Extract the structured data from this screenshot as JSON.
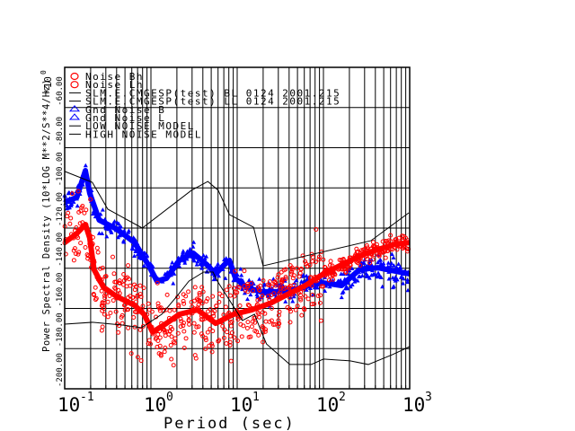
{
  "chart_data": {
    "type": "line",
    "xscale": "log",
    "xlabel": "Period (sec)",
    "ylabel": "Power Spectral Density (10*LOG M**2/S**4/Hz)",
    "y_multiplier": "*10",
    "y_multiplier_exp": "0",
    "xlim": [
      0.1,
      1000
    ],
    "ylim": [
      -200,
      -40
    ],
    "x_ticks": [
      {
        "base": "10",
        "exp": "-1"
      },
      {
        "base": "10",
        "exp": "0"
      },
      {
        "base": "10",
        "exp": "1"
      },
      {
        "base": "10",
        "exp": "2"
      },
      {
        "base": "10",
        "exp": "3"
      }
    ],
    "y_ticks": [
      -200,
      -180,
      -160,
      -140,
      -120,
      -100,
      -80,
      -60
    ],
    "y_tick_labels": [
      "-200.00",
      "-180.00",
      "-160.00",
      "-140.00",
      "-120.00",
      "-100.00",
      "-80.00",
      "-60.00"
    ],
    "grid": true,
    "legend_position": "top-left",
    "legend": [
      {
        "label": "Noise Bh",
        "marker": "circle",
        "color": "#ff0000"
      },
      {
        "label": "Noise Lh",
        "marker": "circle",
        "color": "#ff0000"
      },
      {
        "label": "SLM.E.CMGESP(test) BL 0124 2001.215",
        "marker": "line",
        "color": "#000000"
      },
      {
        "label": "SLM.E.CMGESP(test) LL 0124 2001.215",
        "marker": "line",
        "color": "#000000"
      },
      {
        "label": "Gnd Noise B",
        "marker": "triangle",
        "color": "#0000ff"
      },
      {
        "label": "Gnd Noise L",
        "marker": "triangle",
        "color": "#0000ff"
      },
      {
        "label": "LOW NOISE MODEL",
        "marker": "line",
        "color": "#000000"
      },
      {
        "label": "HIGH NOISE MODEL",
        "marker": "line",
        "color": "#000000"
      }
    ],
    "series": [
      {
        "name": "Gnd Noise (blue)",
        "color": "#0000ff",
        "marker": "triangle",
        "log10_period": [
          -1,
          -0.86,
          -0.76,
          -0.71,
          -0.6,
          -0.4,
          -0.19,
          -0.03,
          0.07,
          0.18,
          0.33,
          0.49,
          0.65,
          0.75,
          0.85,
          0.91,
          0.98,
          1.11,
          1.27,
          1.48,
          1.69,
          1.84,
          2.0,
          2.21,
          2.42,
          2.63,
          2.73,
          3.0
        ],
        "db": [
          -107,
          -104.8,
          -91.4,
          -102.6,
          -116,
          -120.4,
          -127.2,
          -138.3,
          -146.4,
          -145,
          -136.1,
          -132.5,
          -138.3,
          -142.8,
          -138.3,
          -136.1,
          -145,
          -149.5,
          -151.7,
          -151.7,
          -150.4,
          -148.6,
          -147.3,
          -148.6,
          -140.6,
          -139.7,
          -140.6,
          -142.8
        ]
      },
      {
        "name": "Noise (red)",
        "color": "#ff0000",
        "marker": "circle",
        "log10_period": [
          -1,
          -0.86,
          -0.76,
          -0.71,
          -0.66,
          -0.55,
          -0.4,
          -0.19,
          -0.08,
          0.02,
          0.18,
          0.33,
          0.54,
          0.75,
          0.96,
          1.17,
          1.38,
          1.58,
          1.79,
          2.0,
          2.21,
          2.42,
          2.63,
          2.83,
          3.0
        ],
        "db": [
          -127.2,
          -122.7,
          -118.2,
          -124.9,
          -140.6,
          -149.5,
          -154,
          -158.4,
          -162.9,
          -171.8,
          -167.4,
          -162.9,
          -160.7,
          -167.4,
          -162.9,
          -160.7,
          -157.5,
          -153.1,
          -148.6,
          -142.8,
          -138.3,
          -133.9,
          -130.7,
          -128,
          -127.2
        ]
      },
      {
        "name": "HIGH NOISE MODEL",
        "color": "#000000",
        "marker": "none",
        "log10_period": [
          -1,
          -0.68,
          -0.5,
          -0.1,
          0.47,
          0.66,
          0.78,
          0.91,
          1.19,
          1.3,
          2.55,
          2.99
        ],
        "db": [
          -91.8,
          -97.2,
          -110.6,
          -120,
          -101.2,
          -96.8,
          -101.2,
          -113.3,
          -119.6,
          -138.8,
          -126.3,
          -112.4
        ]
      },
      {
        "name": "LOW NOISE MODEL",
        "color": "#000000",
        "marker": "none",
        "log10_period": [
          -1,
          -0.68,
          -0.32,
          -0.11,
          0.125,
          0.3,
          0.44,
          0.61,
          0.72,
          0.77,
          1.06,
          1.2,
          1.27,
          1.34,
          1.61,
          1.86,
          2.0,
          2.31,
          2.52,
          2.8,
          3.0
        ],
        "db": [
          -167.8,
          -166.9,
          -168.3,
          -169.6,
          -162.9,
          -154,
          -146.4,
          -141.9,
          -141.9,
          -146.4,
          -166,
          -162.9,
          -170.5,
          -177.7,
          -187.9,
          -187.9,
          -185.2,
          -186.1,
          -187.9,
          -183,
          -179
        ]
      }
    ]
  }
}
